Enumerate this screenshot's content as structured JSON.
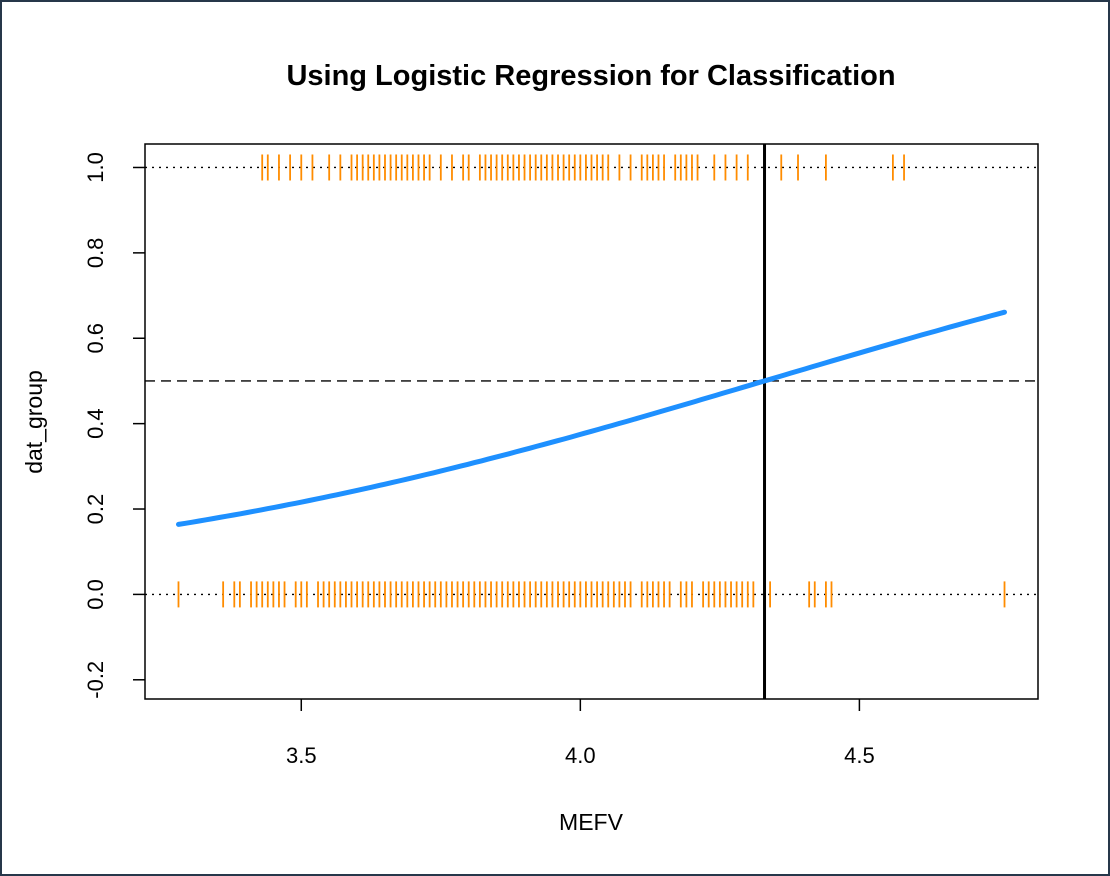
{
  "chart_data": {
    "type": "scatter",
    "title": "Using Logistic Regression for Classification",
    "xlabel": "MEFV",
    "ylabel": "dat_group",
    "xlim": [
      3.22,
      4.82
    ],
    "ylim": [
      -0.245,
      1.055
    ],
    "x_ticks": [
      "3.5",
      "4.0",
      "4.5"
    ],
    "y_ticks": [
      "-0.2",
      "0.0",
      "0.2",
      "0.4",
      "0.6",
      "0.8",
      "1.0"
    ],
    "grid": false,
    "colors": {
      "rug": "#ff8c00",
      "curve": "#1e90ff",
      "axis": "#000000"
    },
    "reference_lines": [
      {
        "orientation": "horizontal",
        "value": 0.0,
        "style": "dotted"
      },
      {
        "orientation": "horizontal",
        "value": 1.0,
        "style": "dotted"
      },
      {
        "orientation": "horizontal",
        "value": 0.5,
        "style": "dashed"
      },
      {
        "orientation": "vertical",
        "value": 4.33,
        "style": "solid"
      }
    ],
    "logistic_curve": {
      "x_range": [
        3.28,
        4.76
      ],
      "intercept": -6.72,
      "slope": 1.552
    },
    "rug_group_1": [
      3.43,
      3.44,
      3.46,
      3.48,
      3.5,
      3.52,
      3.55,
      3.57,
      3.59,
      3.6,
      3.61,
      3.62,
      3.63,
      3.64,
      3.65,
      3.66,
      3.67,
      3.68,
      3.69,
      3.7,
      3.71,
      3.72,
      3.73,
      3.75,
      3.77,
      3.79,
      3.8,
      3.82,
      3.83,
      3.84,
      3.85,
      3.86,
      3.87,
      3.88,
      3.89,
      3.9,
      3.91,
      3.92,
      3.93,
      3.94,
      3.95,
      3.96,
      3.97,
      3.98,
      3.99,
      4.0,
      4.01,
      4.02,
      4.03,
      4.04,
      4.05,
      4.07,
      4.09,
      4.11,
      4.12,
      4.13,
      4.14,
      4.15,
      4.17,
      4.18,
      4.19,
      4.2,
      4.21,
      4.24,
      4.26,
      4.28,
      4.3,
      4.36,
      4.39,
      4.44,
      4.56,
      4.58
    ],
    "rug_group_0": [
      3.28,
      3.36,
      3.38,
      3.39,
      3.41,
      3.42,
      3.43,
      3.44,
      3.45,
      3.46,
      3.47,
      3.49,
      3.5,
      3.51,
      3.53,
      3.54,
      3.55,
      3.56,
      3.57,
      3.58,
      3.59,
      3.6,
      3.61,
      3.62,
      3.63,
      3.64,
      3.65,
      3.66,
      3.67,
      3.68,
      3.69,
      3.7,
      3.71,
      3.72,
      3.73,
      3.74,
      3.75,
      3.76,
      3.77,
      3.78,
      3.79,
      3.8,
      3.81,
      3.82,
      3.83,
      3.84,
      3.85,
      3.86,
      3.87,
      3.88,
      3.89,
      3.9,
      3.91,
      3.92,
      3.93,
      3.94,
      3.95,
      3.96,
      3.97,
      3.98,
      3.99,
      4.0,
      4.01,
      4.02,
      4.03,
      4.04,
      4.05,
      4.06,
      4.07,
      4.08,
      4.09,
      4.11,
      4.12,
      4.13,
      4.14,
      4.15,
      4.16,
      4.18,
      4.19,
      4.2,
      4.22,
      4.23,
      4.24,
      4.25,
      4.26,
      4.27,
      4.28,
      4.29,
      4.3,
      4.31,
      4.34,
      4.41,
      4.42,
      4.44,
      4.45,
      4.76
    ]
  }
}
